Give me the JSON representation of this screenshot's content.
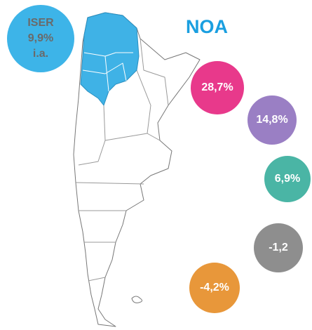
{
  "title": "NOA",
  "badge": {
    "label": "ISER",
    "value": "9,9%",
    "note": "i.a."
  },
  "bubbles": [
    "28,7%",
    "14,8%",
    "6,9%",
    "-1,2",
    "-4,2%"
  ]
}
